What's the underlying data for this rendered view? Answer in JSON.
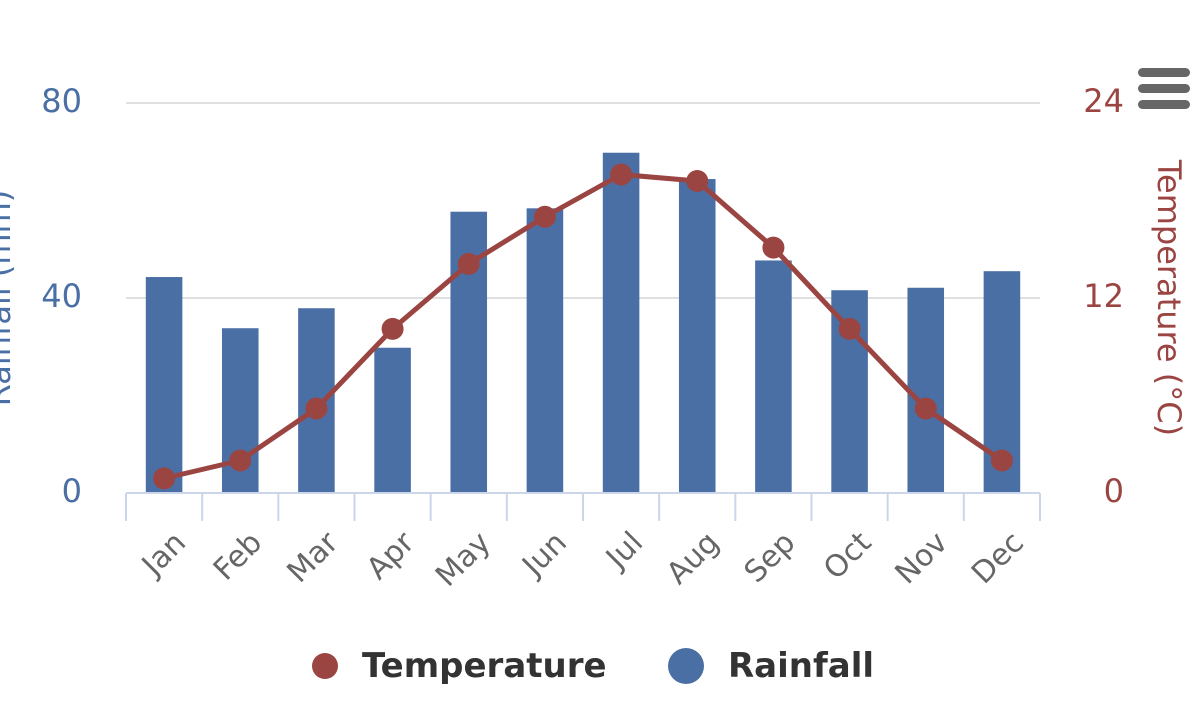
{
  "chart_data": {
    "type": "bar+line",
    "title": "",
    "categories": [
      "Jan",
      "Feb",
      "Mar",
      "Apr",
      "May",
      "Jun",
      "Jul",
      "Aug",
      "Sep",
      "Oct",
      "Nov",
      "Dec"
    ],
    "series": [
      {
        "name": "Rainfall",
        "type": "bar",
        "axis": "left",
        "color": "#4a6fa5",
        "values": [
          44.3,
          33.8,
          37.9,
          29.8,
          57.7,
          58.4,
          69.8,
          64.4,
          47.7,
          41.6,
          42.1,
          45.5
        ]
      },
      {
        "name": "Temperature",
        "type": "line",
        "axis": "right",
        "color": "#9b4542",
        "values": [
          0.9,
          2.0,
          5.2,
          10.1,
          14.1,
          17.0,
          19.6,
          19.2,
          15.1,
          10.1,
          5.2,
          2.0
        ]
      }
    ],
    "y_left": {
      "label": "Rainfall (mm)",
      "min": 0,
      "max": 80,
      "ticks": [
        0,
        40,
        80
      ],
      "color": "#4a6fa5"
    },
    "y_right": {
      "label": "Temperature (°C)",
      "min": 0,
      "max": 24,
      "ticks": [
        0,
        12,
        24
      ],
      "color": "#9b4542"
    },
    "grid": true,
    "legend": {
      "position": "bottom-center",
      "order": [
        "Temperature",
        "Rainfall"
      ]
    }
  },
  "menu": {
    "icon": "hamburger-menu-icon"
  }
}
